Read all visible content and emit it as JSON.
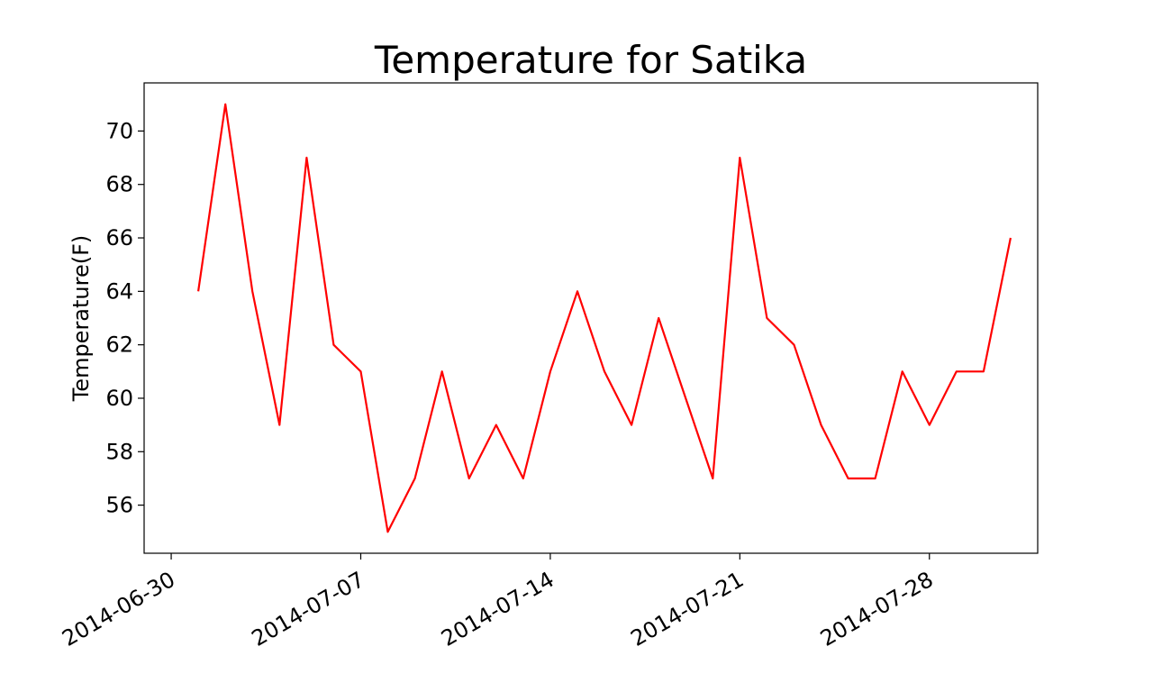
{
  "chart_data": {
    "type": "line",
    "title": "Temperature for Satika",
    "xlabel": "",
    "ylabel": "Temperature(F)",
    "x_tick_labels": [
      "2014-06-30",
      "2014-07-07",
      "2014-07-14",
      "2014-07-21",
      "2014-07-28"
    ],
    "y_tick_labels": [
      "56",
      "58",
      "60",
      "62",
      "64",
      "66",
      "68",
      "70"
    ],
    "ylim": [
      54.2,
      71.8
    ],
    "xlim": [
      "2014-06-29",
      "2014-08-01"
    ],
    "grid": false,
    "series": [
      {
        "color": "#ff0000",
        "x": [
          "2014-07-01",
          "2014-07-02",
          "2014-07-03",
          "2014-07-04",
          "2014-07-05",
          "2014-07-06",
          "2014-07-07",
          "2014-07-08",
          "2014-07-09",
          "2014-07-10",
          "2014-07-11",
          "2014-07-12",
          "2014-07-13",
          "2014-07-14",
          "2014-07-15",
          "2014-07-16",
          "2014-07-17",
          "2014-07-18",
          "2014-07-19",
          "2014-07-20",
          "2014-07-21",
          "2014-07-22",
          "2014-07-23",
          "2014-07-24",
          "2014-07-25",
          "2014-07-26",
          "2014-07-27",
          "2014-07-28",
          "2014-07-29",
          "2014-07-30",
          "2014-07-31"
        ],
        "values": [
          64,
          71,
          64,
          59,
          69,
          62,
          61,
          55,
          57,
          61,
          57,
          59,
          57,
          61,
          64,
          61,
          59,
          63,
          60,
          57,
          69,
          63,
          62,
          59,
          57,
          57,
          61,
          59,
          61,
          61,
          66
        ]
      }
    ]
  }
}
